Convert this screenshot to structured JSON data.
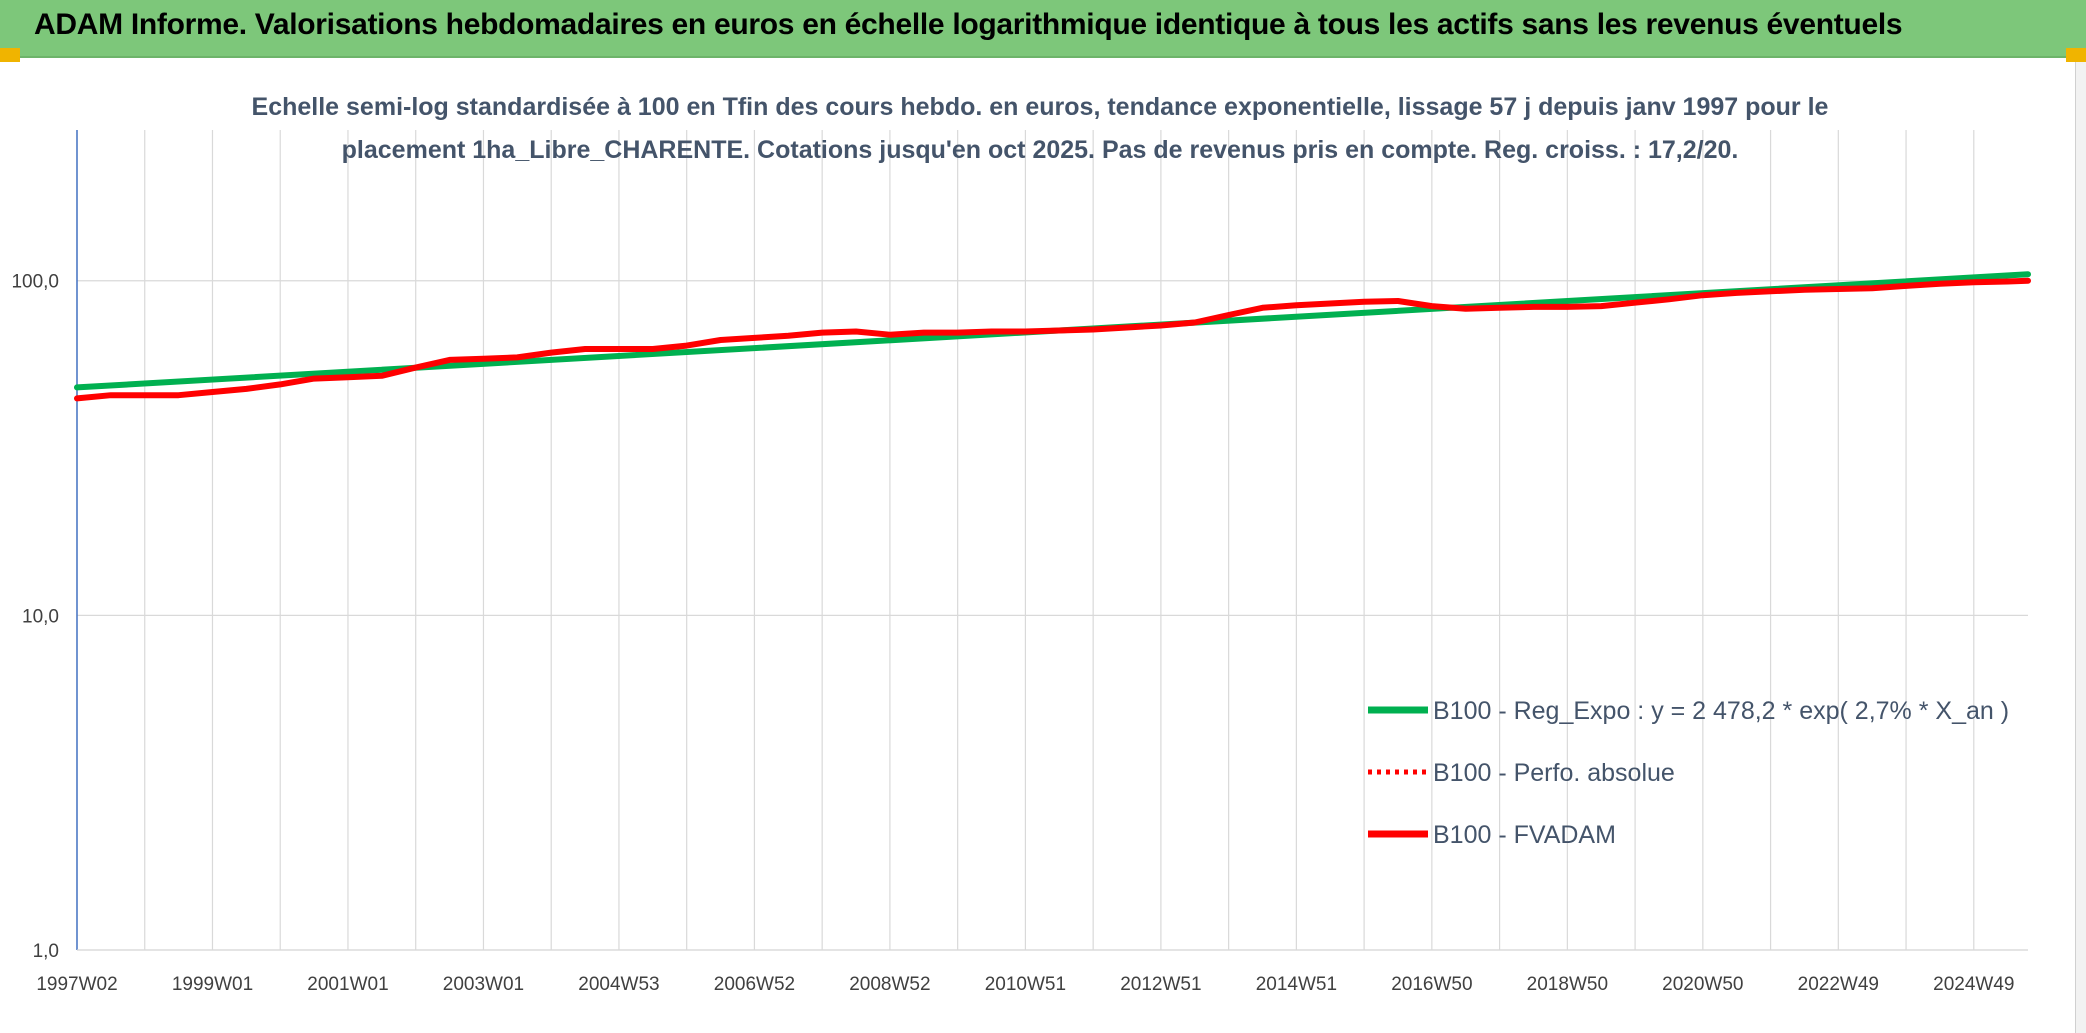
{
  "banner": {
    "title": "ADAM Informe. Valorisations hebdomadaires en euros en échelle logarithmique identique à tous les actifs sans les revenus éventuels",
    "bg_color": "#7dc77a",
    "corner_color": "#f0b400"
  },
  "chart_data": {
    "type": "line",
    "title": "",
    "subtitle_lines": [
      "Echelle semi-log standardisée à 100 en Tfin des cours hebdo. en euros, tendance exponentielle, lissage 57 j depuis janv 1997 pour le",
      "placement 1ha_Libre_CHARENTE. Cotations jusqu'en oct 2025. Pas de revenus pris en compte. Reg. croiss. : 17,2/20."
    ],
    "xlabel": "",
    "ylabel": "",
    "y_scale": "log",
    "ylim": [
      1,
      200
    ],
    "y_ticks": [
      {
        "value": 1,
        "label": "1,0"
      },
      {
        "value": 10,
        "label": "10,0"
      },
      {
        "value": 100,
        "label": "100,0"
      }
    ],
    "x_range": [
      1997.0,
      2025.8
    ],
    "x_ticks": [
      {
        "value": 1997.0,
        "label": "1997W02"
      },
      {
        "value": 1999.0,
        "label": "1999W01"
      },
      {
        "value": 2001.0,
        "label": "2001W01"
      },
      {
        "value": 2003.0,
        "label": "2003W01"
      },
      {
        "value": 2005.0,
        "label": "2004W53"
      },
      {
        "value": 2007.0,
        "label": "2006W52"
      },
      {
        "value": 2009.0,
        "label": "2008W52"
      },
      {
        "value": 2011.0,
        "label": "2010W51"
      },
      {
        "value": 2013.0,
        "label": "2012W51"
      },
      {
        "value": 2015.0,
        "label": "2014W51"
      },
      {
        "value": 2017.0,
        "label": "2016W50"
      },
      {
        "value": 2019.0,
        "label": "2018W50"
      },
      {
        "value": 2021.0,
        "label": "2020W50"
      },
      {
        "value": 2023.0,
        "label": "2022W49"
      },
      {
        "value": 2025.0,
        "label": "2024W49"
      }
    ],
    "grid": "vertical-each-year-and-horizontal-decades",
    "legend_position": "bottom-right",
    "series": [
      {
        "name": "B100 - Reg_Expo : y = 2 478,2 * exp( 2,7% *  X_an )",
        "color": "#00b050",
        "style": "solid",
        "x": [
          1997.0,
          2025.8
        ],
        "values": [
          48.0,
          104.5
        ]
      },
      {
        "name": "B100 - Perfo. absolue",
        "color": "#ff0000",
        "style": "dotted",
        "x": [],
        "values": []
      },
      {
        "name": "B100 - FVADAM",
        "color": "#ff0000",
        "style": "solid",
        "x": [
          1997.0,
          1997.5,
          1998.0,
          1998.5,
          1999.0,
          1999.5,
          2000.0,
          2000.5,
          2001.0,
          2001.5,
          2002.0,
          2002.5,
          2003.0,
          2003.5,
          2004.0,
          2004.5,
          2005.0,
          2005.5,
          2006.0,
          2006.5,
          2007.0,
          2007.5,
          2008.0,
          2008.5,
          2009.0,
          2009.5,
          2010.0,
          2010.5,
          2011.0,
          2011.5,
          2012.0,
          2012.5,
          2013.0,
          2013.5,
          2014.0,
          2014.5,
          2015.0,
          2015.5,
          2016.0,
          2016.5,
          2017.0,
          2017.5,
          2018.0,
          2018.5,
          2019.0,
          2019.5,
          2020.0,
          2020.5,
          2021.0,
          2021.5,
          2022.0,
          2022.5,
          2023.0,
          2023.5,
          2024.0,
          2024.5,
          2025.0,
          2025.5,
          2025.8
        ],
        "values": [
          44.5,
          45.5,
          45.5,
          45.5,
          46.5,
          47.5,
          49.0,
          51.0,
          51.5,
          52.0,
          55.0,
          58.0,
          58.5,
          59.0,
          61.0,
          62.5,
          62.5,
          62.5,
          64.0,
          66.5,
          67.5,
          68.5,
          70.0,
          70.5,
          69.0,
          70.0,
          70.0,
          70.5,
          70.5,
          71.0,
          71.5,
          72.5,
          73.5,
          75.0,
          79.0,
          83.0,
          84.5,
          85.5,
          86.5,
          87.0,
          84.0,
          82.5,
          83.0,
          83.5,
          83.5,
          84.0,
          86.0,
          88.0,
          90.5,
          92.0,
          93.0,
          94.0,
          94.5,
          95.0,
          96.5,
          98.0,
          99.0,
          99.5,
          100.0
        ]
      }
    ]
  }
}
